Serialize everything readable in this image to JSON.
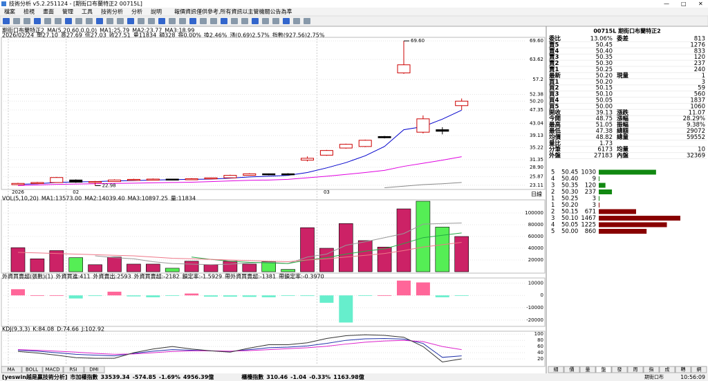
{
  "window": {
    "title": "技術分析 v5.2.251124 - [期街口布蘭特正2 00715L]"
  },
  "menu": [
    "檔案",
    "檢視",
    "畫面",
    "管理",
    "工具",
    "技術分析",
    "分析",
    "說明"
  ],
  "notice": "報價資訊僅供參考,所有資訊以主管機關公告為準",
  "price_header": [
    {
      "text": "期街口布蘭特正2",
      "color": "#000"
    },
    {
      "text": "MA(5,20,60,0,0,0)",
      "color": "#000"
    },
    {
      "text": "MA1:25.79",
      "color": "#0000cc"
    },
    {
      "text": "MA2:23.77",
      "color": "#e000e0"
    },
    {
      "text": "MA3:18.99",
      "color": "#888"
    }
  ],
  "quote_header": [
    {
      "text": "2026/02/24",
      "color": "#000"
    },
    {
      "text": "開27.10",
      "color": "#c00"
    },
    {
      "text": "高27.69",
      "color": "#c00"
    },
    {
      "text": "低27.03",
      "color": "#c00"
    },
    {
      "text": "收27.51",
      "color": "#c00"
    },
    {
      "text": "量11834",
      "color": "#000"
    },
    {
      "text": "額328",
      "color": "#000"
    },
    {
      "text": "振0.00%",
      "color": "#000"
    },
    {
      "text": "換2.46%",
      "color": "#000"
    },
    {
      "text": "漲(0.69)2.57%",
      "color": "#c00"
    },
    {
      "text": "指數(927.56)2.75%",
      "color": "#c00"
    }
  ],
  "chart_data": [
    {
      "type": "candlestick",
      "categories": [
        "2026",
        null,
        null,
        "02",
        null,
        null,
        null,
        null,
        null,
        null,
        null,
        null,
        null,
        null,
        null,
        null,
        "03",
        null,
        null,
        null,
        null,
        null,
        null,
        null
      ],
      "open": [
        23.3,
        23.7,
        24.0,
        24.8,
        24.1,
        24.3,
        24.8,
        24.9,
        25.1,
        24.9,
        25.2,
        25.5,
        26.3,
        26.8,
        26.8,
        31.2,
        32.8,
        35.1,
        35.6,
        38.8,
        59.3,
        40.2,
        41.0,
        48.75
      ],
      "high": [
        23.9,
        24.2,
        25.8,
        25.0,
        24.5,
        25.0,
        25.2,
        25.3,
        25.2,
        25.4,
        25.6,
        26.5,
        27.0,
        26.9,
        27.0,
        32.4,
        34.5,
        36.5,
        37.8,
        39.0,
        69.6,
        45.6,
        41.8,
        51.05
      ],
      "low": [
        23.2,
        23.5,
        23.9,
        23.9,
        22.98,
        24.2,
        24.6,
        24.7,
        24.7,
        24.8,
        25.0,
        25.4,
        26.2,
        26.3,
        26.4,
        30.8,
        32.6,
        34.9,
        35.4,
        38.2,
        59.0,
        39.8,
        39.5,
        47.38
      ],
      "close": [
        23.7,
        24.0,
        25.6,
        24.1,
        24.3,
        24.8,
        25.0,
        25.1,
        24.9,
        25.2,
        25.5,
        26.3,
        26.8,
        26.5,
        26.6,
        31.8,
        34.3,
        36.3,
        37.6,
        38.4,
        61.9,
        44.5,
        40.5,
        50.2
      ],
      "up_color": "#cc0000",
      "down_color": "#000000",
      "annotations": [
        {
          "index": 20,
          "text": "69.60",
          "value": 69.6
        },
        {
          "index": 4,
          "text": "22.98",
          "value": 22.98
        }
      ],
      "series": [
        {
          "name": "MA1",
          "color": "#0000cc",
          "values": [
            23.4,
            23.6,
            24.0,
            24.2,
            24.3,
            24.5,
            24.6,
            24.8,
            24.9,
            25.0,
            25.1,
            25.4,
            25.8,
            26.0,
            26.3,
            27.2,
            28.7,
            30.4,
            32.6,
            35.6,
            41.0,
            42.0,
            44.4,
            47.3
          ]
        },
        {
          "name": "MA2",
          "color": "#e000e0",
          "values": [
            23.0,
            23.2,
            23.4,
            23.5,
            23.6,
            23.7,
            23.8,
            23.9,
            24.0,
            24.1,
            24.3,
            24.5,
            24.7,
            24.8,
            25.0,
            25.5,
            26.0,
            26.6,
            27.2,
            27.9,
            29.2,
            30.2,
            31.2,
            32.3
          ]
        },
        {
          "name": "MA3",
          "color": "#888888",
          "values": [
            null,
            null,
            null,
            null,
            null,
            null,
            null,
            null,
            null,
            null,
            null,
            null,
            null,
            null,
            null,
            null,
            null,
            null,
            null,
            22.3,
            22.8,
            23.3,
            23.6,
            24.0
          ]
        }
      ],
      "ylim": [
        22.2,
        70.3
      ],
      "yticks": [
        {
          "value": 69.6,
          "label": "69.60"
        },
        63.62,
        57.2,
        52.38,
        {
          "value": 50.2,
          "label": "50.20"
        },
        47.35,
        43.04,
        39.13,
        35.22,
        31.35,
        {
          "value": 28.9,
          "label": "28.90"
        },
        25.87,
        23.11
      ],
      "period": "日線"
    },
    {
      "type": "bar",
      "header": [
        {
          "text": "VOL(5,10,20)",
          "color": "#000"
        },
        {
          "text": "MA1:13573.00",
          "color": "#888"
        },
        {
          "text": "MA2:14039.40",
          "color": "#0a0"
        },
        {
          "text": "MA3:10897.25",
          "color": "#e07070"
        },
        {
          "text": "量:11834",
          "color": "#00c"
        }
      ],
      "values": [
        41000,
        22000,
        36000,
        24000,
        12000,
        25000,
        13000,
        13000,
        6000,
        18000,
        12000,
        18000,
        13000,
        17000,
        4000,
        75000,
        40000,
        82000,
        53000,
        42000,
        107000,
        120000,
        76000,
        60000
      ],
      "colors": [
        "#cc2266",
        "#cc2266",
        "#cc2266",
        "#55ee55",
        "#cc2266",
        "#cc2266",
        "#cc2266",
        "#cc2266",
        "#55ee55",
        "#cc2266",
        "#cc2266",
        "#cc2266",
        "#cc2266",
        "#55ee55",
        "#55ee55",
        "#cc2266",
        "#cc2266",
        "#cc2266",
        "#cc2266",
        "#cc2266",
        "#cc2266",
        "#55ee55",
        "#55ee55",
        "#cc2266"
      ],
      "series": [
        {
          "name": "MA1",
          "color": "#999999",
          "values": [
            null,
            null,
            null,
            null,
            27000,
            24000,
            22000,
            17000,
            14000,
            13000,
            12000,
            13000,
            15000,
            16000,
            14000,
            25000,
            30000,
            45000,
            51000,
            58000,
            65000,
            81000,
            82000,
            83000
          ]
        },
        {
          "name": "MA2",
          "color": "#22aa44",
          "values": [
            null,
            null,
            null,
            null,
            null,
            null,
            null,
            null,
            null,
            25000,
            21000,
            18000,
            16000,
            15000,
            14000,
            20000,
            24000,
            30000,
            35000,
            39000,
            48000,
            58000,
            62000,
            66000
          ]
        },
        {
          "name": "MA3",
          "color": "#ee7788",
          "values": [
            33000,
            32000,
            31000,
            30000,
            29000,
            28000,
            27000,
            25000,
            23000,
            22000,
            21000,
            20000,
            19000,
            18000,
            17000,
            20000,
            22000,
            25000,
            28000,
            31000,
            36000,
            42000,
            46000,
            50000
          ]
        }
      ],
      "ylim": [
        0,
        120000
      ],
      "yticks": [
        20000,
        40000,
        60000,
        80000,
        100000
      ]
    },
    {
      "type": "bar",
      "header": [
        {
          "text": "外資買賣超(張數)(1)",
          "color": "#000"
        },
        {
          "text": "外資買進:411",
          "color": "#888"
        },
        {
          "text": "外資賣出:2593",
          "color": "#0a0"
        },
        {
          "text": "外資買賣超:-2182",
          "color": "#888"
        },
        {
          "text": "鎖定率:-1.5929",
          "color": "#c00"
        },
        {
          "text": "帶外資買賣超:-1381",
          "color": "#0aa"
        },
        {
          "text": "帶鎖定率:-0.3970",
          "color": "#e07070"
        }
      ],
      "values": [
        5000,
        0,
        0,
        -2500,
        -500,
        3000,
        -800,
        -1500,
        -300,
        1500,
        -1000,
        -1000,
        -1200,
        -1500,
        -200,
        -500,
        -6000,
        -22000,
        -300,
        0,
        12000,
        10500,
        -1500,
        -300
      ],
      "pos_color": "#ff6699",
      "neg_color": "#66eecc",
      "ylim": [
        -24000,
        13000
      ],
      "yticks": [
        10000,
        0,
        -10000,
        -20000
      ]
    },
    {
      "type": "line",
      "header": [
        {
          "text": "KDJ(9,3,3)",
          "color": "#000"
        },
        {
          "text": "K:84.08",
          "color": "#00c"
        },
        {
          "text": "D:74.66",
          "color": "#e000e0"
        },
        {
          "text": "J:102.92",
          "color": "#000"
        }
      ],
      "series": [
        {
          "name": "K",
          "color": "#2233aa",
          "values": [
            48,
            45,
            40,
            35,
            32,
            30,
            38,
            45,
            50,
            48,
            46,
            44,
            50,
            56,
            58,
            62,
            70,
            80,
            85,
            86,
            84,
            70,
            25,
            30
          ]
        },
        {
          "name": "D",
          "color": "#dd22cc",
          "values": [
            50,
            48,
            45,
            42,
            38,
            35,
            36,
            40,
            44,
            46,
            46,
            45,
            47,
            50,
            53,
            56,
            61,
            68,
            74,
            78,
            80,
            76,
            60,
            50
          ]
        },
        {
          "name": "J",
          "color": "#333333",
          "values": [
            44,
            39,
            32,
            24,
            22,
            22,
            40,
            52,
            60,
            52,
            46,
            42,
            55,
            66,
            66,
            72,
            86,
            95,
            98,
            96,
            90,
            60,
            10,
            20
          ]
        }
      ],
      "ylim": [
        0,
        105
      ],
      "yticks": [
        20,
        40,
        60,
        80,
        100
      ]
    }
  ],
  "tabs": [
    "MA",
    "BOLL",
    "MACD",
    "RSI",
    "DMI"
  ],
  "orderbook": {
    "title": "00715L 期街口布蘭特正2",
    "rows": [
      [
        "委比",
        "13.06%",
        "委差",
        "813"
      ],
      [
        "賣5",
        "50.45",
        "1276"
      ],
      [
        "賣4",
        "50.40",
        "833"
      ],
      [
        "賣3",
        "50.35",
        "120"
      ],
      [
        "賣2",
        "50.30",
        "237"
      ],
      [
        "賣1",
        "50.25",
        "240"
      ],
      [
        "最新",
        "50.20",
        "現量",
        "1"
      ],
      [
        "買1",
        "50.20",
        "3"
      ],
      [
        "買2",
        "50.15",
        "59"
      ],
      [
        "買3",
        "50.10",
        "560"
      ],
      [
        "買4",
        "50.05",
        "1837"
      ],
      [
        "買5",
        "50.00",
        "1060"
      ],
      [
        "開收",
        "39.13",
        "漲跌",
        "11.07"
      ],
      [
        "今開",
        "48.75",
        "漲幅",
        "28.29%"
      ],
      [
        "最高",
        "51.05",
        "振幅",
        "9.38%"
      ],
      [
        "最低",
        "47.38",
        "總額",
        "29072"
      ],
      [
        "均價",
        "48.82",
        "總量",
        "59552"
      ],
      [
        "量比",
        "1.73"
      ],
      [
        "分筆",
        "6173",
        "均量",
        "10"
      ],
      [
        "外盤",
        "27183",
        "內盤",
        "32369"
      ]
    ],
    "depth_sell": [
      [
        "5",
        "50.45",
        1030
      ],
      [
        "4",
        "50.40",
        9
      ],
      [
        "3",
        "50.35",
        120
      ],
      [
        "2",
        "50.30",
        237
      ],
      [
        "1",
        "50.25",
        3
      ]
    ],
    "depth_buy": [
      [
        "1",
        "50.20",
        3
      ],
      [
        "2",
        "50.15",
        671
      ],
      [
        "3",
        "50.10",
        1467
      ],
      [
        "4",
        "50.05",
        1225
      ],
      [
        "5",
        "50.00",
        860
      ]
    ],
    "sell_color": "#118811",
    "buy_color": "#880000",
    "tabs": [
      "細",
      "價",
      "量",
      "盤",
      "發",
      "周",
      "指",
      "成",
      "轉",
      "網"
    ]
  },
  "status": [
    {
      "text": "[yeswin越是贏技術分析]",
      "color": "#c00"
    },
    {
      "text": "市加權指數",
      "color": "#000"
    },
    {
      "text": "33539.34",
      "color": "#080"
    },
    {
      "text": "-574.85",
      "color": "#080"
    },
    {
      "text": "-1.69%",
      "color": "#080"
    },
    {
      "text": "4956.39億",
      "color": "#000"
    },
    {
      "text": "櫃檯指數",
      "color": "#000"
    },
    {
      "text": "310.46",
      "color": "#080"
    },
    {
      "text": "-1.04",
      "color": "#080"
    },
    {
      "text": "-0.33%",
      "color": "#080"
    },
    {
      "text": "1163.98億",
      "color": "#000"
    }
  ],
  "status_right": [
    "期街口布",
    "10:56:09"
  ]
}
